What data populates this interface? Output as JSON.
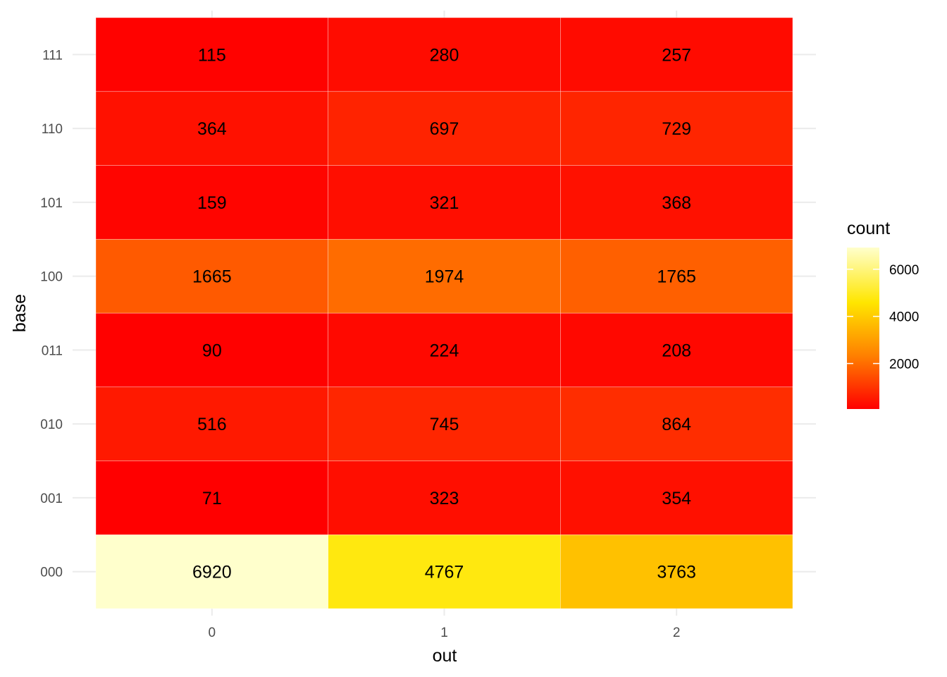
{
  "chart_data": {
    "type": "heatmap",
    "xlabel": "out",
    "ylabel": "base",
    "x_categories": [
      "0",
      "1",
      "2"
    ],
    "y_categories": [
      "000",
      "001",
      "010",
      "011",
      "100",
      "101",
      "110",
      "111"
    ],
    "values": [
      [
        6920,
        4767,
        3763
      ],
      [
        71,
        323,
        354
      ],
      [
        516,
        745,
        864
      ],
      [
        90,
        224,
        208
      ],
      [
        1665,
        1974,
        1765
      ],
      [
        159,
        321,
        368
      ],
      [
        364,
        697,
        729
      ],
      [
        115,
        280,
        257
      ]
    ],
    "color_scale": {
      "low_color": "#ff0000",
      "mid_colors": [
        "#ff8000",
        "#ffff00"
      ],
      "high_color": "#ffffcc",
      "min": 71,
      "max": 6920
    },
    "legend": {
      "title": "count",
      "ticks": [
        2000,
        4000,
        6000
      ],
      "placement": "right"
    },
    "grid": true
  }
}
